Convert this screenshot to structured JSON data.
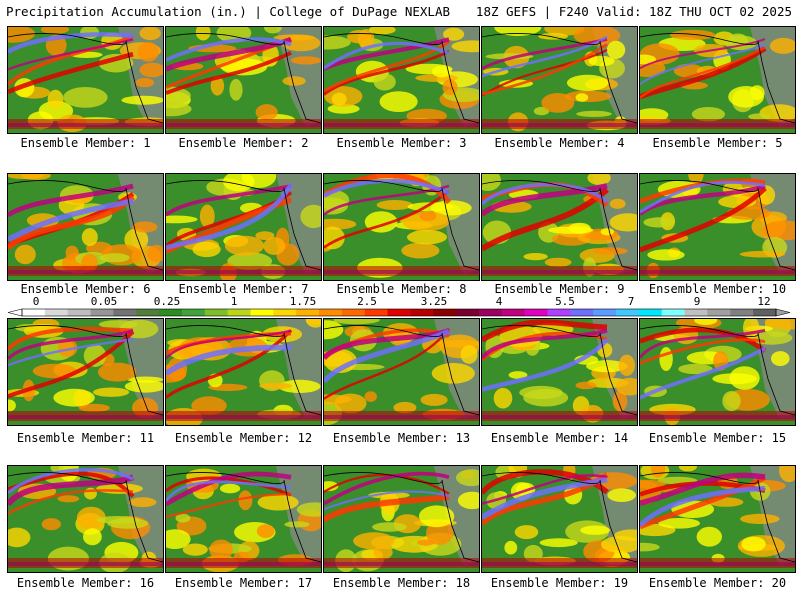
{
  "header": {
    "title_left": "Precipitation Accumulation (in.) | College of DuPage NEXLAB",
    "title_right": "18Z GEFS | F240 Valid: 18Z THU OCT 02 2025"
  },
  "panels": [
    {
      "label": "Ensemble Member: 1"
    },
    {
      "label": "Ensemble Member: 2"
    },
    {
      "label": "Ensemble Member: 3"
    },
    {
      "label": "Ensemble Member: 4"
    },
    {
      "label": "Ensemble Member: 5"
    },
    {
      "label": "Ensemble Member: 6"
    },
    {
      "label": "Ensemble Member: 7"
    },
    {
      "label": "Ensemble Member: 8"
    },
    {
      "label": "Ensemble Member: 9"
    },
    {
      "label": "Ensemble Member: 10"
    },
    {
      "label": "Ensemble Member: 11"
    },
    {
      "label": "Ensemble Member: 12"
    },
    {
      "label": "Ensemble Member: 13"
    },
    {
      "label": "Ensemble Member: 14"
    },
    {
      "label": "Ensemble Member: 15"
    },
    {
      "label": "Ensemble Member: 16"
    },
    {
      "label": "Ensemble Member: 17"
    },
    {
      "label": "Ensemble Member: 18"
    },
    {
      "label": "Ensemble Member: 19"
    },
    {
      "label": "Ensemble Member: 20"
    }
  ],
  "colorbar": {
    "tick_labels": [
      "0",
      "0.05",
      "0.25",
      "1",
      "1.75",
      "2.5",
      "3.25",
      "4",
      "5.5",
      "7",
      "9",
      "12"
    ],
    "colors": [
      "#ffffff",
      "#d9d9d9",
      "#bdbdbd",
      "#969696",
      "#737373",
      "#4f7f3a",
      "#2e8b22",
      "#3fa23a",
      "#7dbf2a",
      "#b9d71a",
      "#ffff00",
      "#ffd700",
      "#ffb000",
      "#ff8c00",
      "#ff6a00",
      "#ff3a00",
      "#e00000",
      "#b80000",
      "#8b0000",
      "#7a0030",
      "#9b0060",
      "#c00080",
      "#e000c0",
      "#b040ff",
      "#7070ff",
      "#5a9cff",
      "#40c8ff",
      "#00e8ff",
      "#80ffff",
      "#c0c0c0",
      "#a0a0a0",
      "#808080",
      "#606060"
    ]
  }
}
